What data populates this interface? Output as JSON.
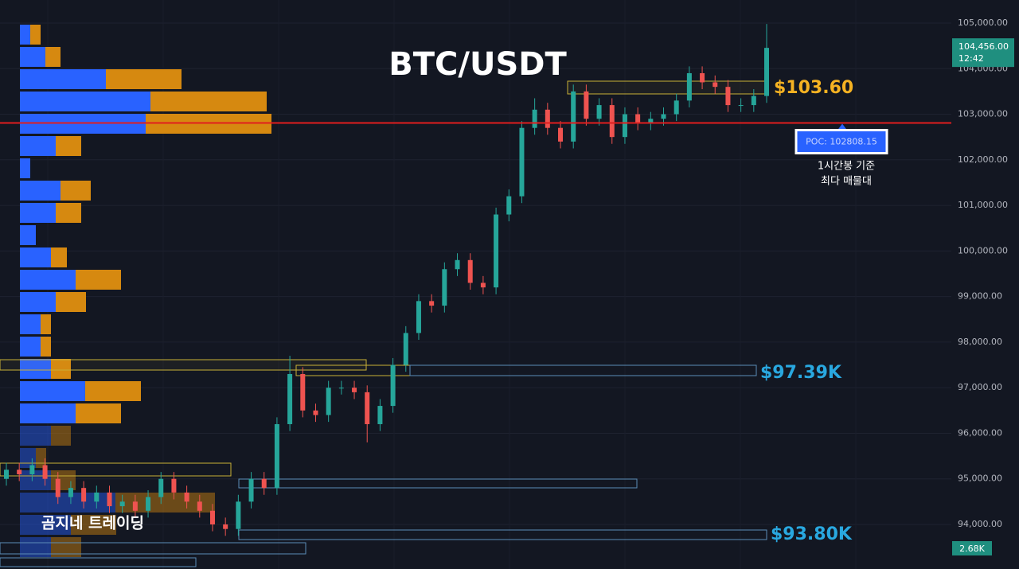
{
  "chart_data": {
    "type": "candlestick",
    "title": "BTC/USDT",
    "watermark": "곰지네 트레이딩",
    "annotations": {
      "level_high": "$103.60",
      "level_mid": "$97.39K",
      "level_low": "$93.80K",
      "poc_note_1": "1시간봉 기준",
      "poc_note_2": "최다 매물대"
    },
    "poc": {
      "value": 102808.15,
      "label": "POC: 102808.15"
    },
    "last_price": {
      "value": 104456,
      "label": "104,456.00"
    },
    "countdown": "12:42",
    "volume_label": "2.68K",
    "ylim": [
      93022,
      105506
    ],
    "yticks": [
      {
        "value": 105000,
        "label": "105,000.00"
      },
      {
        "value": 104000,
        "label": "104,000.00"
      },
      {
        "value": 103000,
        "label": "103,000.00"
      },
      {
        "value": 102000,
        "label": "102,000.00"
      },
      {
        "value": 101000,
        "label": "101,000.00"
      },
      {
        "value": 100000,
        "label": "100,000.00"
      },
      {
        "value": 99000,
        "label": "99,000.00"
      },
      {
        "value": 98000,
        "label": "98,000.00"
      },
      {
        "value": 97000,
        "label": "97,000.00"
      },
      {
        "value": 96000,
        "label": "96,000.00"
      },
      {
        "value": 95000,
        "label": "95,000.00"
      },
      {
        "value": 94000,
        "label": "94,000.00"
      }
    ],
    "open": [
      95000,
      95200,
      95100,
      95300,
      95000,
      94600,
      94800,
      94500,
      94700,
      94400,
      94500,
      94300,
      94600,
      95000,
      94700,
      94500,
      94300,
      94000,
      93900,
      94500,
      95000,
      94800,
      96200,
      97300,
      96500,
      96400,
      97000,
      97000,
      96900,
      96200,
      96600,
      97500,
      98200,
      98900,
      98800,
      99600,
      99800,
      99300,
      99200,
      100800,
      101200,
      102700,
      103100,
      102700,
      102400,
      103500,
      102900,
      103200,
      102500,
      103000,
      102800,
      102900,
      103000,
      103300,
      103900,
      103700,
      103600,
      103200,
      103200,
      103400
    ],
    "high": [
      95350,
      95350,
      95450,
      95450,
      95150,
      94950,
      94950,
      94850,
      94850,
      94650,
      94650,
      94750,
      95150,
      95150,
      94850,
      94650,
      94450,
      94150,
      94650,
      95150,
      95150,
      96350,
      97700,
      97450,
      96650,
      97150,
      97150,
      97150,
      97050,
      96750,
      97650,
      98350,
      99050,
      99050,
      99750,
      99950,
      99950,
      99450,
      100950,
      101350,
      102850,
      103350,
      103250,
      102850,
      103650,
      103650,
      103350,
      103350,
      103150,
      103150,
      103050,
      103150,
      103450,
      104050,
      104050,
      103850,
      103750,
      103350,
      103550,
      104980
    ],
    "low": [
      94850,
      94950,
      94950,
      94850,
      94450,
      94450,
      94350,
      94350,
      94250,
      94250,
      94150,
      94150,
      94450,
      94550,
      94350,
      94150,
      93850,
      93750,
      93750,
      94350,
      94650,
      94650,
      96050,
      96350,
      96250,
      96250,
      96850,
      96750,
      95800,
      96050,
      96450,
      97350,
      98050,
      98650,
      98650,
      99450,
      99150,
      99050,
      99050,
      100650,
      101050,
      102550,
      102550,
      102250,
      102250,
      102750,
      102750,
      102350,
      102350,
      102650,
      102650,
      102750,
      102850,
      103150,
      103550,
      103450,
      103050,
      103050,
      103050,
      103250
    ],
    "close": [
      95200,
      95100,
      95300,
      95000,
      94600,
      94800,
      94500,
      94700,
      94400,
      94500,
      94300,
      94600,
      95000,
      94700,
      94500,
      94300,
      94000,
      93900,
      94500,
      95000,
      94800,
      96200,
      97300,
      96500,
      96400,
      97000,
      97000,
      96900,
      96200,
      96600,
      97500,
      98200,
      98900,
      98800,
      99600,
      99800,
      99300,
      99200,
      100800,
      101200,
      102700,
      103100,
      102700,
      102400,
      103500,
      102900,
      103200,
      102500,
      103000,
      102800,
      102900,
      103000,
      103300,
      103900,
      103700,
      103600,
      103200,
      103200,
      103400,
      104456
    ],
    "up_color": "#26a69a",
    "down_color": "#ef5350",
    "volume_profile": {
      "buy_color": "#2962ff",
      "sell_color": "#d68910",
      "buy": [
        13,
        32,
        108,
        164,
        158,
        45,
        13,
        51,
        45,
        20,
        39,
        70,
        45,
        26,
        26,
        39,
        82,
        70,
        39,
        20,
        39,
        120,
        64,
        39
      ],
      "sell": [
        13,
        19,
        95,
        146,
        158,
        32,
        0,
        38,
        32,
        0,
        20,
        57,
        38,
        13,
        13,
        25,
        70,
        57,
        25,
        13,
        31,
        125,
        57,
        38
      ]
    },
    "grid": true
  }
}
